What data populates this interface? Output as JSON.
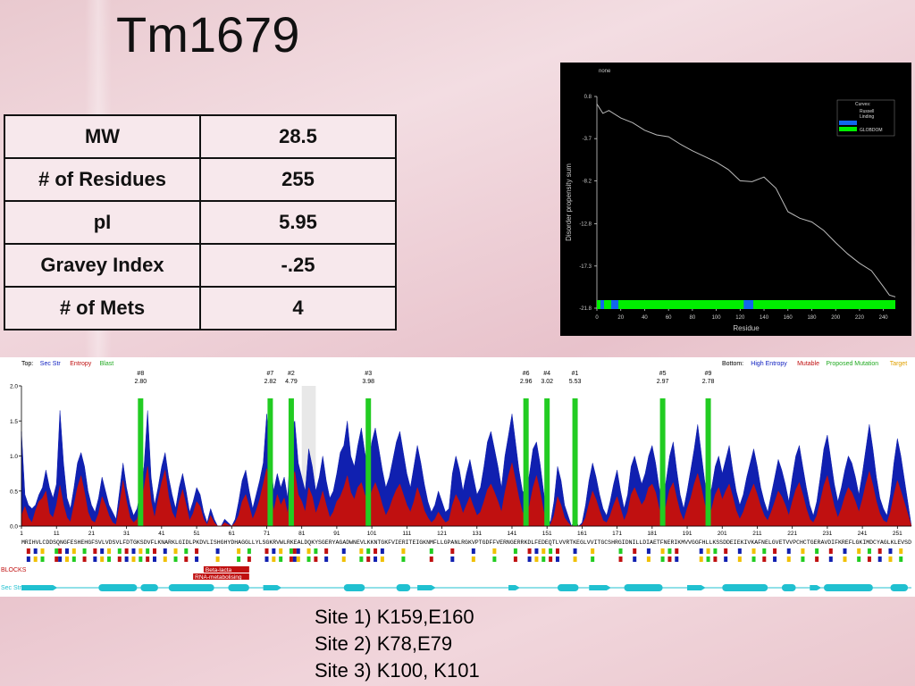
{
  "slide": {
    "title": "Tm1679"
  },
  "properties_table": [
    {
      "name": "MW",
      "value": "28.5"
    },
    {
      "name": "# of Residues",
      "value": "255"
    },
    {
      "name": "pI",
      "value": "5.95"
    },
    {
      "name": "Gravey Index",
      "value": "-.25"
    },
    {
      "name": "# of Mets",
      "value": "4"
    }
  ],
  "sites": [
    "Site 1) K159,E160",
    "Site 2) K78,E79",
    "Site 3) K100, K101"
  ],
  "colors": {
    "entropy_red": "#c01010",
    "entropy_blue": "#1020b0",
    "blast_green": "#22cc22",
    "secstr_cyan": "#20c0d0",
    "target_yellow": "#f0c000",
    "globdom_green": "#00ee00",
    "disorder_blue": "#1166ee"
  },
  "chart_data": [
    {
      "type": "line",
      "title": "none",
      "xlabel": "Residue",
      "ylabel": "Disorder propensity sum",
      "xlim": [
        0,
        250
      ],
      "ylim": [
        -21.8,
        0.8
      ],
      "x_ticks": [
        "0",
        "20",
        "40",
        "60",
        "80",
        "100",
        "120",
        "140",
        "160",
        "180",
        "200",
        "220",
        "240"
      ],
      "y_ticks": [
        "0.8",
        "-3.7",
        "-8.2",
        "-12.8",
        "-17.3",
        "-21.8"
      ],
      "legend": {
        "title": "Curves:",
        "entries": [
          "Russell",
          "Linding",
          "GLOBDOM"
        ],
        "placement": "top-right"
      },
      "series": [
        {
          "name": "Russell Linding",
          "x": [
            0,
            5,
            10,
            20,
            30,
            40,
            50,
            60,
            70,
            80,
            90,
            100,
            110,
            120,
            130,
            140,
            150,
            160,
            170,
            180,
            190,
            200,
            210,
            220,
            230,
            240,
            245,
            250
          ],
          "y": [
            0,
            -1.0,
            -0.7,
            -1.5,
            -2.0,
            -2.8,
            -3.3,
            -3.5,
            -4.3,
            -5.0,
            -5.6,
            -6.2,
            -7.0,
            -8.2,
            -8.3,
            -7.8,
            -9.0,
            -11.5,
            -12.2,
            -12.6,
            -13.5,
            -14.8,
            -16.0,
            -17.0,
            -17.8,
            -19.5,
            -20.4,
            -20.6
          ]
        }
      ],
      "globdom_bar": {
        "name": "GLOBDOM",
        "disordered_segments": [
          [
            3,
            6
          ],
          [
            12,
            18
          ],
          [
            123,
            131
          ]
        ]
      }
    },
    {
      "type": "area",
      "header_left": [
        "Top:",
        "Sec Str",
        "Entropy",
        "Blast"
      ],
      "header_right": [
        "Bottom:",
        "High Entropy",
        "Mutable",
        "Proposed Mutation",
        "Target"
      ],
      "ylim": [
        0,
        2.0
      ],
      "y_ticks": [
        "0.0",
        "0.5",
        "1.0",
        "1.5",
        "2.0"
      ],
      "x_ticks": [
        "1",
        "11",
        "21",
        "31",
        "41",
        "51",
        "61",
        "71",
        "81",
        "91",
        "101",
        "111",
        "121",
        "131",
        "141",
        "151",
        "161",
        "171",
        "181",
        "191",
        "201",
        "211",
        "221",
        "231",
        "241",
        "251"
      ],
      "sites": [
        {
          "rank": "#8",
          "score": "2.80",
          "residue": 35
        },
        {
          "rank": "#7",
          "score": "2.82",
          "residue": 72
        },
        {
          "rank": "#2",
          "score": "4.79",
          "residue": 78
        },
        {
          "rank": "#3",
          "score": "3.98",
          "residue": 100
        },
        {
          "rank": "#6",
          "score": "2.96",
          "residue": 145
        },
        {
          "rank": "#4",
          "score": "3.02",
          "residue": 151
        },
        {
          "rank": "#1",
          "score": "5.53",
          "residue": 159
        },
        {
          "rank": "#5",
          "score": "2.97",
          "residue": 184
        },
        {
          "rank": "#9",
          "score": "2.78",
          "residue": 197
        }
      ],
      "sequence": "MRIHVLCDDSQNGFESHEHGFSVLVDSVLFDTGKSDVFLKNARKLGIDLPKDVLISHGHYDHAGGLLYLSGKRVWLRKEALDQKYSGERYAGADWNEVLKKNTGKFVIERITEIGKNMFLLGPANLRGKVPTGDFFVERNGERRKDLFEDEQTLVVRTKEGLVVITGCSHRGIDNILLDIAETFNERIKMVVGGFHLLKSSDDEIEKIVKAFNELGVETVVPCHCTGERAVDIFKREFLGKIMDCYAGLKLEVSD",
      "entropy_red": [
        0.15,
        0.28,
        0.12,
        0.05,
        0.22,
        0.35,
        0.4,
        0.5,
        0.18,
        0.12,
        0.3,
        0.58,
        0.3,
        0.12,
        0.06,
        0.3,
        0.55,
        0.72,
        0.48,
        0.2,
        0.08,
        0.05,
        0.18,
        0.42,
        0.3,
        0.15,
        0.05,
        0.02,
        0.3,
        0.65,
        0.35,
        0.12,
        0.05,
        0.1,
        0.3,
        0.55,
        0.85,
        0.35,
        0.12,
        0.38,
        0.62,
        0.8,
        0.42,
        0.2,
        0.1,
        0.35,
        0.52,
        0.3,
        0.08,
        0.18,
        0.35,
        0.28,
        0.1,
        0.02,
        0.15,
        0.05,
        0.0,
        0.0,
        0.05,
        0.02,
        0.0,
        0.05,
        0.15,
        0.35,
        0.45,
        0.28,
        0.1,
        0.22,
        0.38,
        0.6,
        0.82,
        0.55,
        0.22,
        0.45,
        0.3,
        0.4,
        0.18,
        0.62,
        0.78,
        0.45,
        0.35,
        0.2,
        0.55,
        0.42,
        0.18,
        0.32,
        0.5,
        0.3,
        0.12,
        0.2,
        0.35,
        0.42,
        0.55,
        0.72,
        0.48,
        0.38,
        0.55,
        0.62,
        0.45,
        0.35,
        0.5,
        0.62,
        0.48,
        0.3,
        0.15,
        0.25,
        0.4,
        0.52,
        0.6,
        0.45,
        0.3,
        0.2,
        0.35,
        0.55,
        0.4,
        0.22,
        0.12,
        0.05,
        0.1,
        0.2,
        0.12,
        0.05,
        0.08,
        0.3,
        0.45,
        0.35,
        0.18,
        0.3,
        0.42,
        0.28,
        0.15,
        0.2,
        0.35,
        0.52,
        0.6,
        0.48,
        0.35,
        0.2,
        0.48,
        0.72,
        0.9,
        0.65,
        0.4,
        0.2,
        0.15,
        0.3,
        0.55,
        0.72,
        0.5,
        0.22,
        0.05,
        0.02,
        0.15,
        0.42,
        0.3,
        0.12,
        0.05,
        0.0,
        0.05,
        0.0,
        0.02,
        0.12,
        0.32,
        0.5,
        0.38,
        0.22,
        0.08,
        0.05,
        0.15,
        0.3,
        0.42,
        0.25,
        0.08,
        0.2,
        0.45,
        0.55,
        0.42,
        0.3,
        0.38,
        0.55,
        0.6,
        0.48,
        0.25,
        0.12,
        0.3,
        0.52,
        0.62,
        0.4,
        0.2,
        0.08,
        0.25,
        0.4,
        0.6,
        0.75,
        0.55,
        0.32,
        0.12,
        0.25,
        0.45,
        0.55,
        0.38,
        0.5,
        0.6,
        0.42,
        0.22,
        0.1,
        0.2,
        0.35,
        0.48,
        0.6,
        0.45,
        0.28,
        0.15,
        0.08,
        0.2,
        0.35,
        0.5,
        0.42,
        0.3,
        0.15,
        0.35,
        0.52,
        0.62,
        0.45,
        0.25,
        0.1,
        0.05,
        0.15,
        0.35,
        0.58,
        0.72,
        0.5,
        0.28,
        0.12,
        0.25,
        0.42,
        0.55,
        0.48,
        0.35,
        0.2,
        0.38,
        0.6,
        0.78,
        0.58,
        0.35,
        0.18,
        0.08,
        0.05,
        0.2,
        0.45,
        0.65,
        0.5
      ],
      "entropy_blue": [
        1.35,
        0.45,
        0.3,
        0.25,
        0.3,
        0.45,
        0.55,
        0.8,
        0.55,
        0.4,
        0.6,
        1.65,
        0.9,
        0.4,
        0.25,
        0.55,
        0.9,
        1.05,
        0.85,
        0.5,
        0.3,
        0.2,
        0.4,
        0.7,
        0.5,
        0.3,
        0.2,
        0.1,
        0.5,
        0.9,
        0.55,
        0.3,
        0.15,
        0.25,
        0.5,
        0.85,
        1.65,
        0.7,
        0.3,
        0.55,
        0.85,
        1.05,
        0.7,
        0.45,
        0.25,
        0.55,
        0.75,
        0.5,
        0.2,
        0.35,
        0.55,
        0.45,
        0.2,
        0.05,
        0.25,
        0.1,
        0.0,
        0.0,
        0.1,
        0.05,
        0.0,
        0.1,
        0.35,
        0.65,
        0.8,
        0.5,
        0.25,
        0.45,
        0.65,
        0.9,
        1.6,
        1.0,
        0.5,
        0.75,
        0.55,
        0.7,
        0.4,
        1.4,
        1.5,
        0.9,
        0.7,
        0.5,
        1.1,
        0.85,
        0.5,
        0.7,
        1.0,
        0.65,
        0.4,
        0.5,
        0.75,
        1.05,
        1.15,
        1.5,
        1.0,
        0.85,
        1.15,
        1.4,
        1.05,
        0.85,
        1.2,
        1.4,
        1.1,
        0.8,
        0.55,
        0.7,
        0.95,
        1.2,
        1.35,
        1.05,
        0.75,
        0.55,
        0.85,
        1.15,
        0.9,
        0.6,
        0.35,
        0.2,
        0.3,
        0.5,
        0.35,
        0.2,
        0.25,
        0.75,
        1.0,
        0.8,
        0.5,
        0.75,
        0.95,
        0.7,
        0.45,
        0.55,
        0.85,
        1.2,
        1.35,
        1.1,
        0.85,
        0.55,
        1.0,
        1.3,
        1.6,
        1.2,
        0.8,
        0.5,
        0.45,
        0.75,
        1.1,
        1.2,
        0.9,
        0.5,
        0.15,
        0.05,
        0.35,
        0.85,
        0.65,
        0.3,
        0.15,
        0.0,
        0.1,
        0.0,
        0.05,
        0.3,
        0.65,
        0.9,
        0.7,
        0.45,
        0.25,
        0.15,
        0.35,
        0.6,
        0.8,
        0.5,
        0.25,
        0.45,
        0.85,
        1.0,
        0.8,
        0.6,
        0.75,
        1.0,
        1.15,
        0.9,
        0.55,
        0.35,
        0.65,
        1.0,
        1.2,
        0.8,
        0.45,
        0.25,
        0.5,
        0.8,
        1.1,
        1.45,
        1.05,
        0.65,
        0.35,
        0.55,
        0.85,
        1.0,
        0.75,
        0.95,
        1.15,
        0.8,
        0.5,
        0.3,
        0.45,
        0.7,
        0.9,
        1.1,
        0.85,
        0.55,
        0.35,
        0.2,
        0.45,
        0.7,
        0.95,
        0.8,
        0.6,
        0.35,
        0.7,
        1.0,
        1.15,
        0.85,
        0.55,
        0.3,
        0.15,
        0.35,
        0.7,
        1.1,
        1.3,
        0.95,
        0.6,
        0.35,
        0.55,
        0.8,
        1.0,
        0.9,
        0.7,
        0.45,
        0.75,
        1.1,
        1.45,
        1.1,
        0.7,
        0.4,
        0.25,
        0.15,
        0.45,
        0.9,
        1.25,
        1.0
      ],
      "tracks": {
        "blocks_label": "BLOCKS",
        "blocks": [
          {
            "label": "Beta-lacta",
            "start": 53,
            "end": 66
          },
          {
            "label": "RNA-metabolising",
            "start": 50,
            "end": 66
          }
        ],
        "secstr_label": "Sec Str",
        "helices": [
          [
            23,
            34
          ],
          [
            35,
            40
          ],
          [
            43,
            56
          ],
          [
            60,
            66
          ],
          [
            93,
            99
          ],
          [
            108,
            112
          ],
          [
            154,
            160
          ],
          [
            173,
            184
          ],
          [
            201,
            214
          ],
          [
            218,
            222
          ],
          [
            230,
            244
          ],
          [
            249,
            254
          ]
        ],
        "strands": [
          [
            1,
            10
          ],
          [
            70,
            74
          ],
          [
            114,
            118
          ],
          [
            140,
            142
          ],
          [
            163,
            168
          ],
          [
            191,
            195
          ],
          [
            226,
            228
          ]
        ]
      }
    }
  ]
}
